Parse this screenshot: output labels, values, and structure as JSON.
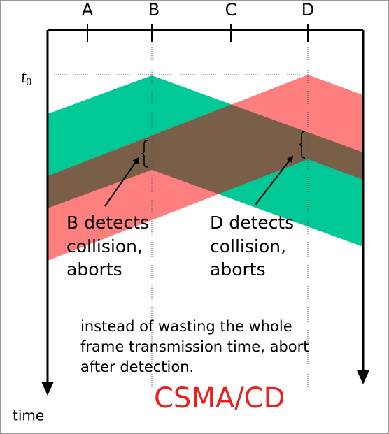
{
  "stations": [
    "A",
    "B",
    "C",
    "D"
  ],
  "t0": {
    "text": "t",
    "sub": "0"
  },
  "annotations": [
    {
      "lines": [
        "B detects",
        "collision,",
        "aborts"
      ]
    },
    {
      "lines": [
        "D detects",
        "collision,",
        "aborts"
      ]
    }
  ],
  "caption": [
    "instead of wasting the whole",
    "frame transmission time, abort",
    "after detection."
  ],
  "title": "CSMA/CD",
  "time_label": "time"
}
